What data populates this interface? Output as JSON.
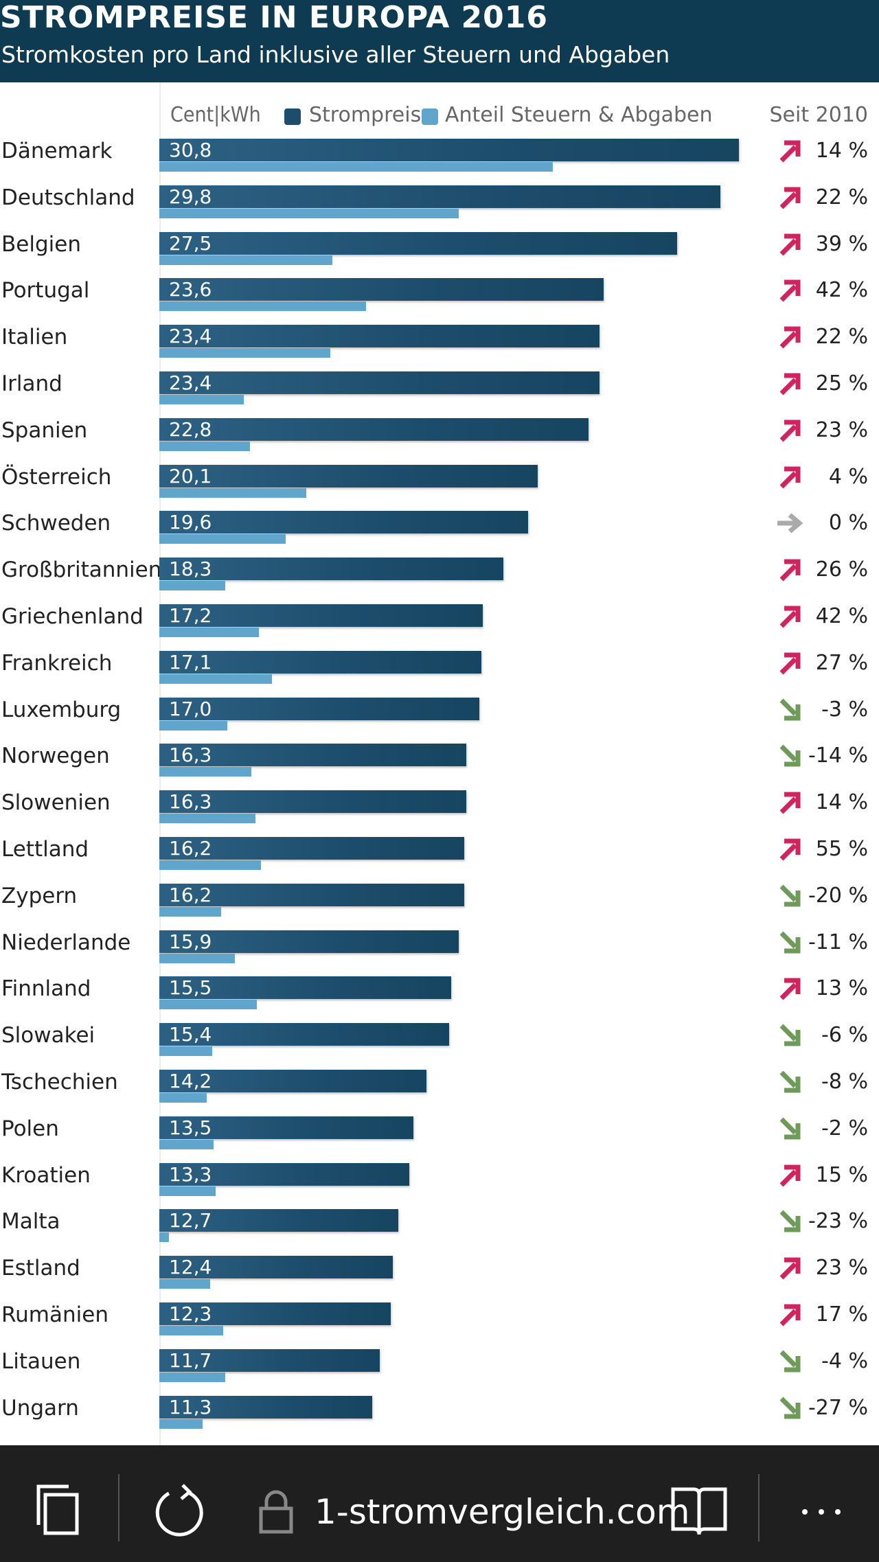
{
  "header": {
    "title": "STROMPREISE IN EUROPA 2016",
    "subtitle": "Stromkosten pro Land inklusive aller Steuern und Abgaben"
  },
  "colors": {
    "header_bg": "#0e3b52",
    "strompreis": "#1d4d6c",
    "steuern": "#5fa5cc",
    "arrow_up": "#d0245e",
    "arrow_down": "#6e9b5a",
    "arrow_neutral": "#aaaaaa",
    "toolbar_bg": "#1f1f1f"
  },
  "legend": {
    "unit": "Cent|kWh",
    "series_1": "Strompreis",
    "series_2": "Anteil Steuern & Abgaben",
    "change_header": "Seit 2010"
  },
  "chart_data": {
    "type": "bar",
    "orientation": "horizontal",
    "title": "STROMPREISE IN EUROPA 2016",
    "subtitle": "Stromkosten pro Land inklusive aller Steuern und Abgaben",
    "unit": "Cent|kWh",
    "xlim": [
      0,
      32
    ],
    "categories": [
      "Dänemark",
      "Deutschland",
      "Belgien",
      "Portugal",
      "Italien",
      "Irland",
      "Spanien",
      "Österreich",
      "Schweden",
      "Großbritannien",
      "Griechenland",
      "Frankreich",
      "Luxemburg",
      "Norwegen",
      "Slowenien",
      "Lettland",
      "Zypern",
      "Niederlande",
      "Finnland",
      "Slowakei",
      "Tschechien",
      "Polen",
      "Kroatien",
      "Malta",
      "Estland",
      "Rumänien",
      "Litauen",
      "Ungarn"
    ],
    "series": [
      {
        "name": "Strompreis",
        "values": [
          30.8,
          29.8,
          27.5,
          23.6,
          23.4,
          23.4,
          22.8,
          20.1,
          19.6,
          18.3,
          17.2,
          17.1,
          17.0,
          16.3,
          16.3,
          16.2,
          16.2,
          15.9,
          15.5,
          15.4,
          14.2,
          13.5,
          13.3,
          12.7,
          12.4,
          12.3,
          11.7,
          11.3
        ],
        "labels": [
          "30,8",
          "29,8",
          "27,5",
          "23,6",
          "23,4",
          "23,4",
          "22,8",
          "20,1",
          "19,6",
          "18,3",
          "17,2",
          "17,1",
          "17,0",
          "16,3",
          "16,3",
          "16,2",
          "16,2",
          "15,9",
          "15,5",
          "15,4",
          "14,2",
          "13,5",
          "13,3",
          "12,7",
          "12,4",
          "12,3",
          "11,7",
          "11,3"
        ]
      },
      {
        "name": "Anteil Steuern & Abgaben",
        "values": [
          20.9,
          15.9,
          9.2,
          11.0,
          9.1,
          4.5,
          4.8,
          7.8,
          6.7,
          3.5,
          5.3,
          6.0,
          3.6,
          4.9,
          5.1,
          5.4,
          3.3,
          4.0,
          5.2,
          2.8,
          2.5,
          2.9,
          3.0,
          0.5,
          2.7,
          3.4,
          3.5,
          2.3
        ]
      }
    ],
    "change_since_2010": {
      "header": "Seit 2010",
      "labels": [
        "14 %",
        "22 %",
        "39 %",
        "42 %",
        "22 %",
        "25 %",
        "23 %",
        "4 %",
        "0 %",
        "26 %",
        "42 %",
        "27 %",
        "-3 %",
        "-14 %",
        "14 %",
        "55 %",
        "-20 %",
        "-11 %",
        "13 %",
        "-6 %",
        "-8 %",
        "-2 %",
        "15 %",
        "-23 %",
        "23 %",
        "17 %",
        "-4 %",
        "-27 %"
      ],
      "direction": [
        "up",
        "up",
        "up",
        "up",
        "up",
        "up",
        "up",
        "up",
        "neutral",
        "up",
        "up",
        "up",
        "down",
        "down",
        "up",
        "up",
        "down",
        "down",
        "up",
        "down",
        "down",
        "down",
        "up",
        "down",
        "up",
        "up",
        "down",
        "down"
      ]
    },
    "legend": "top"
  },
  "toolbar": {
    "url": "1-stromvergleich.com",
    "icons": [
      "tabs-icon",
      "reload-icon",
      "lock-icon",
      "reader-icon",
      "more-icon"
    ]
  }
}
